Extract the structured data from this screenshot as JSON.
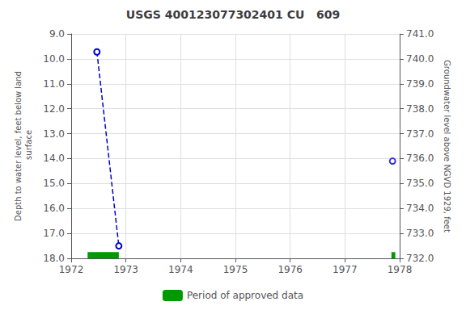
{
  "chart_data": {
    "type": "line",
    "title": "USGS 400123077302401 CU   609",
    "ylabel": "Depth to water level, feet below land\n surface",
    "y2label": "Groundwater level above NGVD 1929, feet",
    "xlim": [
      1972.0,
      1978.0
    ],
    "xticks": [
      1972,
      1973,
      1974,
      1975,
      1976,
      1977,
      1978
    ],
    "ylim": [
      18.0,
      9.0
    ],
    "yticks": [
      {
        "value": 9.0,
        "label": "9.0"
      },
      {
        "value": 10.0,
        "label": "10.0"
      },
      {
        "value": 11.0,
        "label": "11.0"
      },
      {
        "value": 12.0,
        "label": "12.0"
      },
      {
        "value": 13.0,
        "label": "13.0"
      },
      {
        "value": 14.0,
        "label": "14.0"
      },
      {
        "value": 15.0,
        "label": "15.0"
      },
      {
        "value": 16.0,
        "label": "16.0"
      },
      {
        "value": 17.0,
        "label": "17.0"
      },
      {
        "value": 18.0,
        "label": "18.0"
      }
    ],
    "y2lim": [
      732.0,
      741.0
    ],
    "y2ticks": [
      {
        "value": 741.0,
        "label": "741.0"
      },
      {
        "value": 740.0,
        "label": "740.0"
      },
      {
        "value": 739.0,
        "label": "739.0"
      },
      {
        "value": 738.0,
        "label": "738.0"
      },
      {
        "value": 737.0,
        "label": "737.0"
      },
      {
        "value": 736.0,
        "label": "736.0"
      },
      {
        "value": 735.0,
        "label": "735.0"
      },
      {
        "value": 734.0,
        "label": "734.0"
      },
      {
        "value": 733.0,
        "label": "733.0"
      },
      {
        "value": 732.0,
        "label": "732.0"
      }
    ],
    "grid": true,
    "legend": "bottom",
    "series": [
      {
        "type": "line",
        "x": [
          1972.47,
          1972.87
        ],
        "values": [
          9.72,
          17.5
        ],
        "color": "#0000cc",
        "line_style": "dashed",
        "marker": "circle"
      },
      {
        "type": "scatter",
        "x": [
          1977.87
        ],
        "values": [
          14.1
        ],
        "color": "#0000cc",
        "marker": "circle"
      },
      {
        "type": "bar",
        "name": "Period of approved data",
        "color": "#009900",
        "x_start": [
          1972.3,
          1977.85
        ],
        "x_end": [
          1972.87,
          1977.92
        ],
        "values": [
          18.0,
          18.0
        ],
        "thickness": 0.25
      }
    ]
  }
}
